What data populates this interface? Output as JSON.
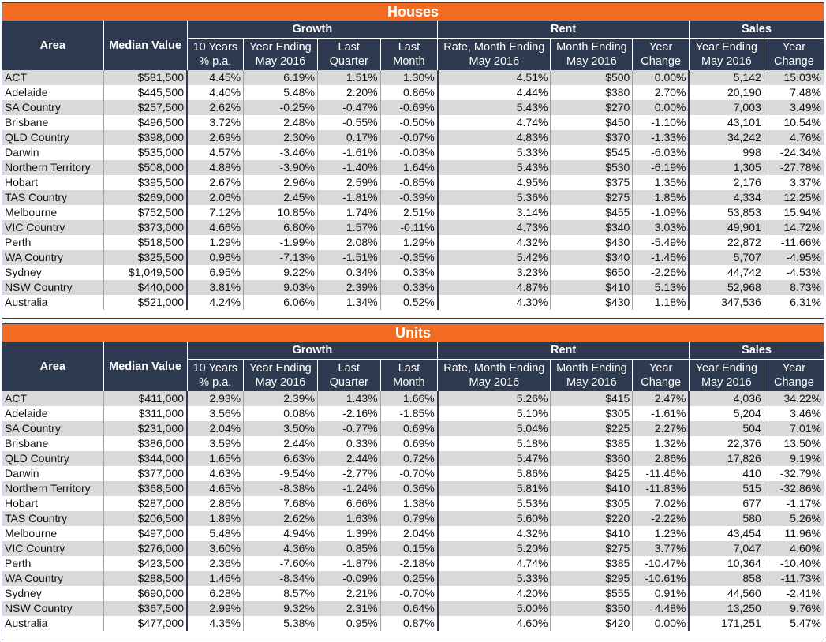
{
  "houses": {
    "title": "Houses",
    "group_headers": {
      "area": "Area",
      "median": "Median Value",
      "growth": "Growth",
      "rent": "Rent",
      "sales": "Sales"
    },
    "sub_headers": [
      "10 Years\n% p.a.",
      "Year Ending\nMay 2016",
      "Last\nQuarter",
      "Last\nMonth",
      "Rate, Month Ending\nMay 2016",
      "Month Ending\nMay 2016",
      "Year\nChange",
      "Year Ending\nMay 2016",
      "Year\nChange"
    ],
    "rows": [
      [
        "ACT",
        "$581,500",
        "4.45%",
        "6.19%",
        "1.51%",
        "1.30%",
        "4.51%",
        "$500",
        "0.00%",
        "5,142",
        "15.03%"
      ],
      [
        "Adelaide",
        "$445,500",
        "4.40%",
        "5.48%",
        "2.20%",
        "0.86%",
        "4.44%",
        "$380",
        "2.70%",
        "20,190",
        "7.48%"
      ],
      [
        "SA Country",
        "$257,500",
        "2.62%",
        "-0.25%",
        "-0.47%",
        "-0.69%",
        "5.43%",
        "$270",
        "0.00%",
        "7,003",
        "3.49%"
      ],
      [
        "Brisbane",
        "$496,500",
        "3.72%",
        "2.48%",
        "-0.55%",
        "-0.50%",
        "4.74%",
        "$450",
        "-1.10%",
        "43,101",
        "10.54%"
      ],
      [
        "QLD Country",
        "$398,000",
        "2.69%",
        "2.30%",
        "0.17%",
        "-0.07%",
        "4.83%",
        "$370",
        "-1.33%",
        "34,242",
        "4.76%"
      ],
      [
        "Darwin",
        "$535,000",
        "4.57%",
        "-3.46%",
        "-1.61%",
        "-0.03%",
        "5.33%",
        "$545",
        "-6.03%",
        "998",
        "-24.34%"
      ],
      [
        "Northern Territory",
        "$508,000",
        "4.88%",
        "-3.90%",
        "-1.40%",
        "1.64%",
        "5.43%",
        "$530",
        "-6.19%",
        "1,305",
        "-27.78%"
      ],
      [
        "Hobart",
        "$395,500",
        "2.67%",
        "2.96%",
        "2.59%",
        "-0.85%",
        "4.95%",
        "$375",
        "1.35%",
        "2,176",
        "3.37%"
      ],
      [
        "TAS Country",
        "$269,000",
        "2.06%",
        "2.45%",
        "-1.81%",
        "-0.39%",
        "5.36%",
        "$275",
        "1.85%",
        "4,334",
        "12.25%"
      ],
      [
        "Melbourne",
        "$752,500",
        "7.12%",
        "10.85%",
        "1.74%",
        "2.51%",
        "3.14%",
        "$455",
        "-1.09%",
        "53,853",
        "15.94%"
      ],
      [
        "VIC Country",
        "$373,000",
        "4.66%",
        "6.80%",
        "1.57%",
        "-0.11%",
        "4.73%",
        "$340",
        "3.03%",
        "49,901",
        "14.72%"
      ],
      [
        "Perth",
        "$518,500",
        "1.29%",
        "-1.99%",
        "2.08%",
        "1.29%",
        "4.32%",
        "$430",
        "-5.49%",
        "22,872",
        "-11.66%"
      ],
      [
        "WA Country",
        "$325,500",
        "0.96%",
        "-7.13%",
        "-1.51%",
        "-0.35%",
        "5.42%",
        "$340",
        "-1.45%",
        "5,707",
        "-4.95%"
      ],
      [
        "Sydney",
        "$1,049,500",
        "6.95%",
        "9.22%",
        "0.34%",
        "0.33%",
        "3.23%",
        "$650",
        "-2.26%",
        "44,742",
        "-4.53%"
      ],
      [
        "NSW Country",
        "$440,000",
        "3.81%",
        "9.03%",
        "2.39%",
        "0.33%",
        "4.87%",
        "$410",
        "5.13%",
        "52,968",
        "8.73%"
      ],
      [
        "Australia",
        "$521,000",
        "4.24%",
        "6.06%",
        "1.34%",
        "0.52%",
        "4.30%",
        "$430",
        "1.18%",
        "347,536",
        "6.31%"
      ]
    ]
  },
  "units": {
    "title": "Units",
    "group_headers": {
      "area": "Area",
      "median": "Median Value",
      "growth": "Growth",
      "rent": "Rent",
      "sales": "Sales"
    },
    "sub_headers": [
      "10 Years\n% p.a.",
      "Year Ending\nMay 2016",
      "Last\nQuarter",
      "Last\nMonth",
      "Rate, Month Ending\nMay 2016",
      "Month Ending\nMay 2016",
      "Year\nChange",
      "Year Ending\nMay 2016",
      "Year\nChange"
    ],
    "rows": [
      [
        "ACT",
        "$411,000",
        "2.93%",
        "2.39%",
        "1.43%",
        "1.66%",
        "5.26%",
        "$415",
        "2.47%",
        "4,036",
        "34.22%"
      ],
      [
        "Adelaide",
        "$311,000",
        "3.56%",
        "0.08%",
        "-2.16%",
        "-1.85%",
        "5.10%",
        "$305",
        "-1.61%",
        "5,204",
        "3.46%"
      ],
      [
        "SA Country",
        "$231,000",
        "2.04%",
        "3.50%",
        "-0.77%",
        "0.69%",
        "5.04%",
        "$225",
        "2.27%",
        "504",
        "7.01%"
      ],
      [
        "Brisbane",
        "$386,000",
        "3.59%",
        "2.44%",
        "0.33%",
        "0.69%",
        "5.18%",
        "$385",
        "1.32%",
        "22,376",
        "13.50%"
      ],
      [
        "QLD Country",
        "$344,000",
        "1.65%",
        "6.63%",
        "2.44%",
        "0.72%",
        "5.47%",
        "$360",
        "2.86%",
        "17,826",
        "9.19%"
      ],
      [
        "Darwin",
        "$377,000",
        "4.63%",
        "-9.54%",
        "-2.77%",
        "-0.70%",
        "5.86%",
        "$425",
        "-11.46%",
        "410",
        "-32.79%"
      ],
      [
        "Northern Territory",
        "$368,500",
        "4.65%",
        "-8.38%",
        "-1.24%",
        "0.36%",
        "5.81%",
        "$410",
        "-11.83%",
        "515",
        "-32.86%"
      ],
      [
        "Hobart",
        "$287,000",
        "2.86%",
        "7.68%",
        "6.66%",
        "1.38%",
        "5.53%",
        "$305",
        "7.02%",
        "677",
        "-1.17%"
      ],
      [
        "TAS Country",
        "$206,500",
        "1.89%",
        "2.62%",
        "1.63%",
        "0.79%",
        "5.60%",
        "$220",
        "-2.22%",
        "580",
        "5.26%"
      ],
      [
        "Melbourne",
        "$497,000",
        "5.48%",
        "4.94%",
        "1.39%",
        "2.04%",
        "4.32%",
        "$410",
        "1.23%",
        "43,454",
        "11.96%"
      ],
      [
        "VIC Country",
        "$276,000",
        "3.60%",
        "4.36%",
        "0.85%",
        "0.15%",
        "5.20%",
        "$275",
        "3.77%",
        "7,047",
        "4.60%"
      ],
      [
        "Perth",
        "$423,500",
        "2.36%",
        "-7.60%",
        "-1.87%",
        "-2.18%",
        "4.74%",
        "$385",
        "-10.47%",
        "10,364",
        "-10.40%"
      ],
      [
        "WA Country",
        "$288,500",
        "1.46%",
        "-8.34%",
        "-0.09%",
        "0.25%",
        "5.33%",
        "$295",
        "-10.61%",
        "858",
        "-11.73%"
      ],
      [
        "Sydney",
        "$690,000",
        "6.28%",
        "8.57%",
        "2.21%",
        "-0.70%",
        "4.20%",
        "$555",
        "0.91%",
        "44,560",
        "-2.41%"
      ],
      [
        "NSW Country",
        "$367,500",
        "2.99%",
        "9.32%",
        "2.31%",
        "0.64%",
        "5.00%",
        "$350",
        "4.48%",
        "13,250",
        "9.76%"
      ],
      [
        "Australia",
        "$477,000",
        "4.35%",
        "5.38%",
        "0.95%",
        "0.87%",
        "4.60%",
        "$420",
        "0.00%",
        "171,251",
        "5.47%"
      ]
    ]
  },
  "colors": {
    "title_bar": "#f26b21",
    "header_bg": "#2d3a4f",
    "stripe": "#d9d9d9"
  },
  "chart_data": [
    {
      "type": "table",
      "title": "Houses",
      "columns": [
        "Area",
        "Median Value",
        "Growth 10 Years % p.a.",
        "Growth Year Ending May 2016",
        "Growth Last Quarter",
        "Growth Last Month",
        "Rent Rate, Month Ending May 2016",
        "Rent Month Ending May 2016",
        "Rent Year Change",
        "Sales Year Ending May 2016",
        "Sales Year Change"
      ],
      "source": "houses.rows"
    },
    {
      "type": "table",
      "title": "Units",
      "columns": [
        "Area",
        "Median Value",
        "Growth 10 Years % p.a.",
        "Growth Year Ending May 2016",
        "Growth Last Quarter",
        "Growth Last Month",
        "Rent Rate, Month Ending May 2016",
        "Rent Month Ending May 2016",
        "Rent Year Change",
        "Sales Year Ending May 2016",
        "Sales Year Change"
      ],
      "source": "units.rows"
    }
  ]
}
